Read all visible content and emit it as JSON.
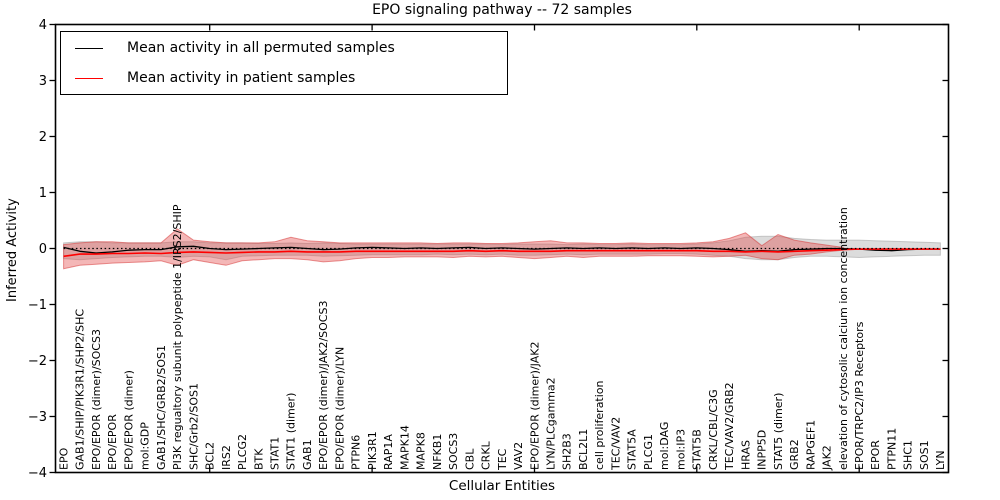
{
  "figure": {
    "title": "EPO signaling pathway -- 72 samples",
    "xlabel": "Cellular Entities",
    "ylabel": "Inferred Activity"
  },
  "legend": {
    "items": [
      {
        "label": "Mean activity in all permuted samples",
        "color": "#000000"
      },
      {
        "label": "Mean activity in patient samples",
        "color": "#ff0000"
      }
    ]
  },
  "colors": {
    "permuted_line": "#000000",
    "patient_line": "#ff0000",
    "patient_band_fill": "rgba(227,66,66,0.38)",
    "patient_band_stroke": "rgba(213,45,45,0.50)",
    "permuted_band_fill": "rgba(130,130,130,0.28)",
    "permuted_band_stroke": "rgba(120,120,120,0.35)"
  },
  "chart_data": {
    "type": "line",
    "title": "EPO signaling pathway -- 72 samples",
    "xlabel": "Cellular Entities",
    "ylabel": "Inferred Activity",
    "ylim": [
      -4,
      4
    ],
    "yticks": [
      -4,
      -3,
      -2,
      -1,
      0,
      1,
      2,
      3,
      4
    ],
    "ytick_labels": [
      "−4",
      "−3",
      "−2",
      "−1",
      "0",
      "1",
      "2",
      "3",
      "4"
    ],
    "xtick_indices": [
      9,
      19,
      29,
      39,
      49
    ],
    "grid": false,
    "legend_position": "upper left",
    "zero_line": {
      "value": 0,
      "style": "dotted",
      "color": "#000000"
    },
    "categories": [
      "EPO",
      "GAB1/SHIP/PIK3R1/SHP2/SHC",
      "EPO/EPOR (dimer)/SOCS3",
      "EPO/EPOR",
      "EPO/EPOR (dimer)",
      "mol:GDP",
      "GAB1/SHC/GRB2/SOS1",
      "PI3K regualtory subunit polypeptide 1/IRS2/SHIP",
      "SHC/Grb2/SOS1",
      "BCL2",
      "IRS2",
      "PLCG2",
      "BTK",
      "STAT1",
      "STAT1 (dimer)",
      "GAB1",
      "EPO/EPOR (dimer)/JAK2/SOCS3",
      "EPO/EPOR (dimer)/LYN",
      "PTPN6",
      "PIK3R1",
      "RAP1A",
      "MAPK14",
      "MAPK8",
      "NFKB1",
      "SOCS3",
      "CBL",
      "CRKL",
      "TEC",
      "VAV2",
      "EPO/EPOR (dimer)/JAK2",
      "LYN/PLCgamma2",
      "SH2B3",
      "BCL2L1",
      "cell proliferation",
      "TEC/VAV2",
      "STAT5A",
      "PLCG1",
      "mol:DAG",
      "mol:IP3",
      "STAT5B",
      "CRKL/CBL/C3G",
      "TEC/VAV2/GRB2",
      "HRAS",
      "INPP5D",
      "STAT5 (dimer)",
      "GRB2",
      "RAPGEF1",
      "JAK2",
      "elevation of cytosolic calcium ion concentration",
      "EPOR/TRPC2/IP3 Receptors",
      "EPOR",
      "PTPN11",
      "SHC1",
      "SOS1",
      "LYN"
    ],
    "series": [
      {
        "name": "Mean activity in all permuted samples",
        "color": "#000000",
        "style": "solid",
        "values": [
          0.02,
          -0.05,
          -0.08,
          -0.06,
          -0.03,
          -0.02,
          -0.02,
          0.03,
          0.04,
          0.0,
          -0.02,
          -0.01,
          0.0,
          0.01,
          0.02,
          0.0,
          -0.02,
          -0.01,
          0.01,
          0.02,
          0.01,
          0.0,
          0.01,
          0.0,
          0.01,
          0.02,
          0.0,
          0.01,
          0.0,
          -0.01,
          0.0,
          0.01,
          0.0,
          0.01,
          0.0,
          0.01,
          0.0,
          0.01,
          0.0,
          0.01,
          0.0,
          -0.02,
          -0.05,
          -0.04,
          -0.05,
          -0.02,
          -0.01,
          0.0,
          0.0,
          -0.01,
          -0.03,
          -0.04,
          -0.02,
          -0.01,
          -0.01
        ]
      },
      {
        "name": "Mean activity in patient samples",
        "color": "#ff0000",
        "style": "solid",
        "values": [
          -0.14,
          -0.1,
          -0.1,
          -0.09,
          -0.09,
          -0.08,
          -0.09,
          -0.07,
          -0.06,
          -0.07,
          -0.08,
          -0.07,
          -0.06,
          -0.06,
          -0.05,
          -0.06,
          -0.06,
          -0.06,
          -0.05,
          -0.05,
          -0.05,
          -0.05,
          -0.05,
          -0.05,
          -0.05,
          -0.04,
          -0.05,
          -0.04,
          -0.05,
          -0.05,
          -0.05,
          -0.04,
          -0.04,
          -0.04,
          -0.04,
          -0.04,
          -0.04,
          -0.04,
          -0.04,
          -0.04,
          -0.05,
          -0.05,
          -0.06,
          -0.05,
          -0.06,
          -0.05,
          -0.04,
          -0.03,
          -0.02,
          -0.01,
          -0.01,
          -0.01,
          -0.01,
          -0.01,
          -0.01
        ]
      }
    ],
    "bands": [
      {
        "name": "Permuted samples activity range",
        "fill": "rgba(130,130,130,0.28)",
        "stroke": "rgba(120,120,120,0.35)",
        "upper": [
          0.1,
          0.12,
          0.12,
          0.1,
          0.1,
          0.1,
          0.1,
          0.12,
          0.12,
          0.1,
          0.1,
          0.1,
          0.09,
          0.09,
          0.1,
          0.09,
          0.1,
          0.09,
          0.08,
          0.08,
          0.08,
          0.08,
          0.08,
          0.08,
          0.08,
          0.08,
          0.08,
          0.07,
          0.08,
          0.08,
          0.08,
          0.07,
          0.08,
          0.07,
          0.07,
          0.08,
          0.07,
          0.07,
          0.07,
          0.08,
          0.1,
          0.14,
          0.2,
          0.22,
          0.22,
          0.18,
          0.16,
          0.15,
          0.15,
          0.15,
          0.14,
          0.13,
          0.12,
          0.11,
          0.1
        ],
        "lower": [
          -0.18,
          -0.2,
          -0.18,
          -0.16,
          -0.15,
          -0.14,
          -0.14,
          -0.16,
          -0.14,
          -0.15,
          -0.2,
          -0.14,
          -0.13,
          -0.12,
          -0.12,
          -0.12,
          -0.14,
          -0.13,
          -0.12,
          -0.11,
          -0.11,
          -0.11,
          -0.11,
          -0.1,
          -0.11,
          -0.1,
          -0.11,
          -0.1,
          -0.12,
          -0.12,
          -0.11,
          -0.1,
          -0.11,
          -0.1,
          -0.1,
          -0.1,
          -0.1,
          -0.09,
          -0.09,
          -0.1,
          -0.12,
          -0.14,
          -0.18,
          -0.2,
          -0.2,
          -0.16,
          -0.14,
          -0.14,
          -0.15,
          -0.16,
          -0.15,
          -0.14,
          -0.13,
          -0.12,
          -0.12
        ]
      },
      {
        "name": "Patient samples activity range",
        "fill": "rgba(227,66,66,0.38)",
        "stroke": "rgba(213,45,45,0.50)",
        "upper": [
          0.07,
          0.1,
          0.12,
          0.12,
          0.1,
          0.1,
          0.1,
          0.35,
          0.15,
          0.12,
          0.1,
          0.1,
          0.1,
          0.12,
          0.2,
          0.14,
          0.12,
          0.1,
          0.1,
          0.1,
          0.1,
          0.1,
          0.1,
          0.09,
          0.1,
          0.1,
          0.09,
          0.09,
          0.1,
          0.12,
          0.14,
          0.1,
          0.1,
          0.09,
          0.09,
          0.1,
          0.09,
          0.09,
          0.09,
          0.1,
          0.12,
          0.18,
          0.28,
          0.05,
          0.25,
          0.15,
          0.1,
          0.06,
          0.02,
          null,
          null,
          null,
          null,
          null,
          null
        ],
        "lower": [
          -0.36,
          -0.3,
          -0.28,
          -0.26,
          -0.25,
          -0.24,
          -0.22,
          -0.3,
          -0.2,
          -0.25,
          -0.3,
          -0.22,
          -0.2,
          -0.18,
          -0.18,
          -0.2,
          -0.24,
          -0.22,
          -0.18,
          -0.16,
          -0.16,
          -0.15,
          -0.15,
          -0.15,
          -0.16,
          -0.14,
          -0.15,
          -0.14,
          -0.16,
          -0.18,
          -0.16,
          -0.14,
          -0.16,
          -0.14,
          -0.14,
          -0.14,
          -0.13,
          -0.13,
          -0.13,
          -0.14,
          -0.15,
          -0.14,
          -0.12,
          -0.18,
          -0.2,
          -0.12,
          -0.1,
          -0.06,
          -0.03,
          null,
          null,
          null,
          null,
          null,
          null
        ]
      }
    ]
  }
}
